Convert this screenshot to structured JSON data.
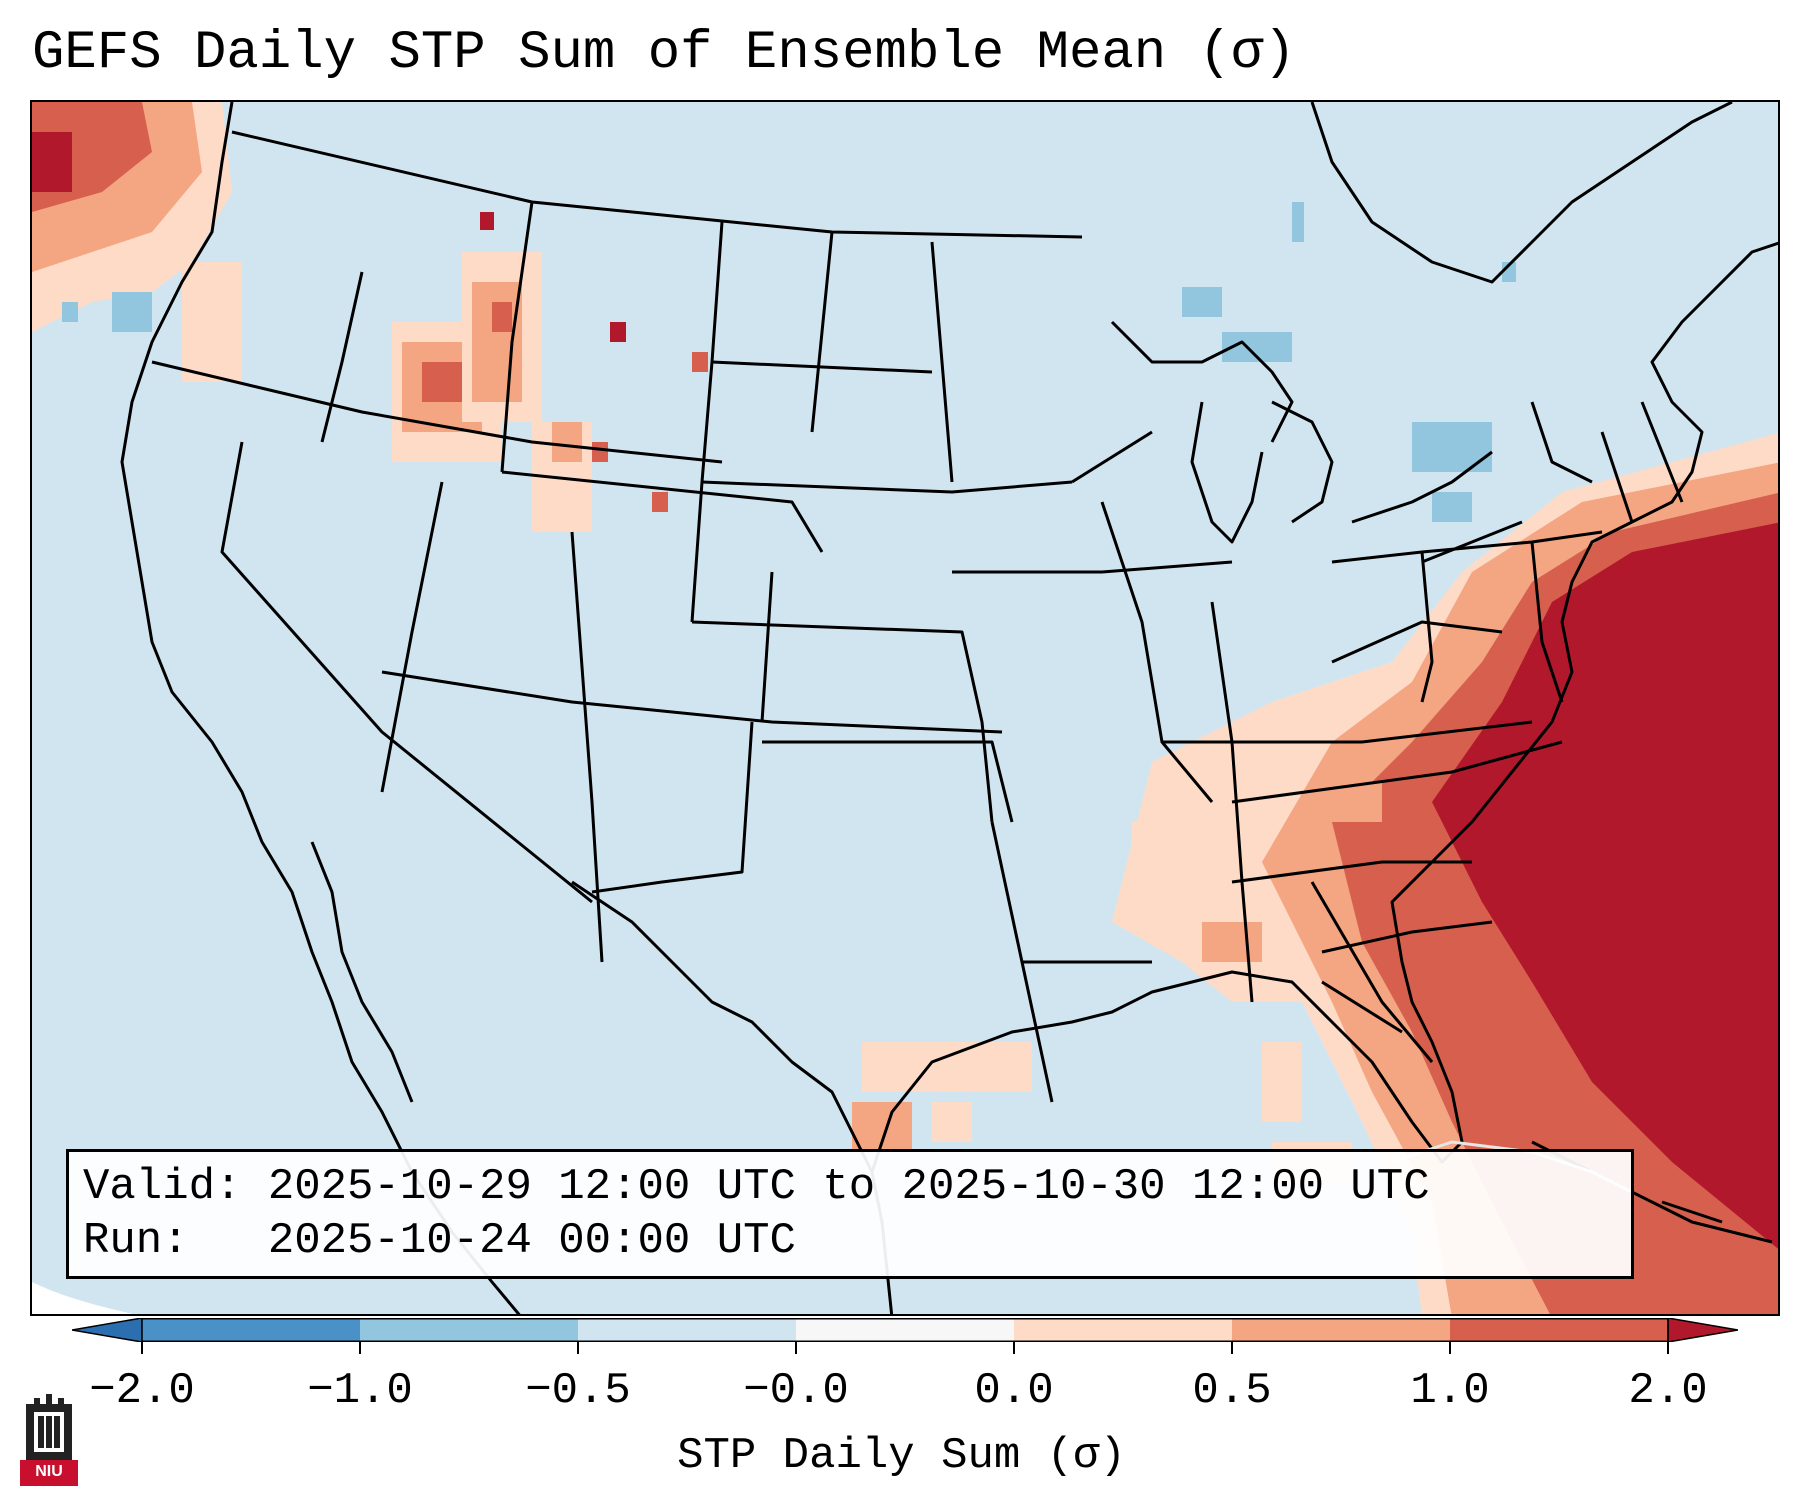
{
  "title": "GEFS Daily STP Sum of Ensemble Mean (σ)",
  "info": {
    "valid_line": "Valid: 2025-10-29 12:00 UTC to 2025-10-30 12:00 UTC",
    "run_line": "Run:   2025-10-24 00:00 UTC"
  },
  "colorbar": {
    "label": "STP Daily Sum (σ)",
    "ticks": [
      "−2.0",
      "−1.0",
      "−0.5",
      "−0.0",
      "0.0",
      "0.5",
      "1.0",
      "2.0"
    ],
    "bins": [
      {
        "color": "#2c6fb0"
      },
      {
        "color": "#4a91c8"
      },
      {
        "color": "#92c5de"
      },
      {
        "color": "#d1e5f0"
      },
      {
        "color": "#f7f7f7"
      },
      {
        "color": "#fddbc7"
      },
      {
        "color": "#f4a582"
      },
      {
        "color": "#d6604d"
      },
      {
        "color": "#b2182b"
      }
    ]
  },
  "map": {
    "background_color": "#d1e5f0",
    "outline_color": "#000000"
  },
  "logo": {
    "text": "NIU"
  }
}
